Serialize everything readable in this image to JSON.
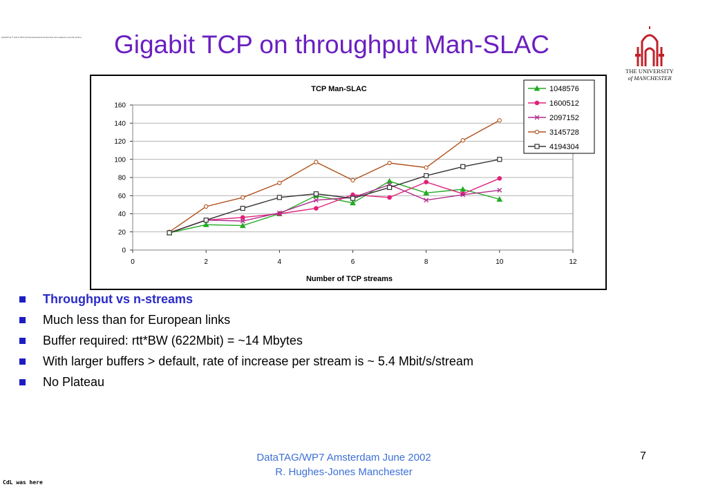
{
  "slide": {
    "qt_note": "QuickTime™ and a TIFF (Uncompressed) decompressor are needed to see this picture.",
    "title": "Gigabit TCP on throughput Man-SLAC",
    "logo_line1": "THE UNIVERSITY",
    "logo_line2": "of MANCHESTER",
    "bullets": [
      "Throughput vs n-streams",
      "Much less than for European links",
      "Buffer required: rtt*BW (622Mbit) = ~14 Mbytes",
      "With larger buffers > default, rate of increase per stream is ~ 5.4 Mbit/s/stream",
      "No Plateau"
    ],
    "footer_line1": "DataTAG/WP7 Amsterdam June  2002",
    "footer_line2": "R. Hughes-Jones  Manchester",
    "page_number": "7",
    "signature": "CdL was here"
  },
  "colors": {
    "title": "#6a1fc0",
    "bullet_square": "#1d1dc4",
    "footer": "#3d6fd6",
    "logo": "#c0202a"
  },
  "chart_data": {
    "type": "line",
    "title": "TCP Man-SLAC",
    "xlabel": "Number of TCP streams",
    "ylabel": "",
    "xlim": [
      0,
      12
    ],
    "ylim": [
      0,
      160
    ],
    "xticks": [
      0,
      2,
      4,
      6,
      8,
      10,
      12
    ],
    "yticks": [
      0,
      20,
      40,
      60,
      80,
      100,
      120,
      140,
      160
    ],
    "grid": "horizontal",
    "legend_position": "top-right",
    "x": [
      1,
      2,
      3,
      4,
      5,
      6,
      7,
      8,
      9,
      10
    ],
    "series": [
      {
        "name": "1048576",
        "color": "#22aa22",
        "marker": "triangle",
        "values": [
          19,
          28,
          27,
          40,
          60,
          52,
          76,
          63,
          67,
          56
        ]
      },
      {
        "name": "1600512",
        "color": "#e0207a",
        "marker": "circle",
        "values": [
          19,
          33,
          36,
          40,
          46,
          61,
          58,
          75,
          62,
          79
        ]
      },
      {
        "name": "2097152",
        "color": "#b02a8a",
        "marker": "x",
        "values": [
          19,
          33,
          32,
          41,
          55,
          58,
          72,
          55,
          61,
          66
        ]
      },
      {
        "name": "3145728",
        "color": "#b0501a",
        "marker": "circle-open",
        "values": [
          20,
          48,
          58,
          74,
          97,
          77,
          96,
          91,
          121,
          143
        ]
      },
      {
        "name": "4194304",
        "color": "#333333",
        "marker": "square",
        "values": [
          19,
          33,
          46,
          58,
          62,
          57,
          69,
          82,
          92,
          100
        ]
      }
    ]
  }
}
